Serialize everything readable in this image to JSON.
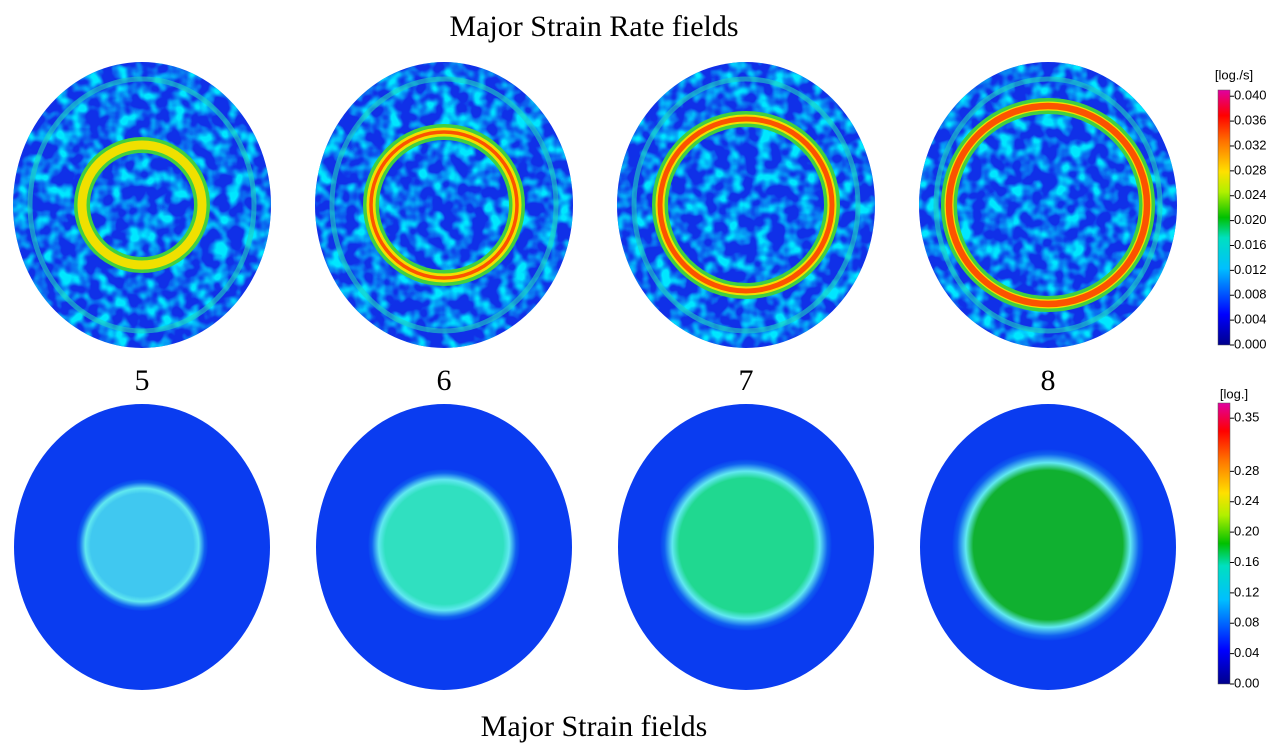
{
  "top_title": "Major Strain Rate fields",
  "bottom_title": "Major Strain fields",
  "panel_labels": [
    "5",
    "6",
    "7",
    "8"
  ],
  "colorbars": [
    {
      "unit": "[log./s]",
      "range": [
        0,
        0.041
      ],
      "ticks": [
        {
          "value": 0,
          "label": "0.000"
        },
        {
          "value": 0.004,
          "label": "0.004"
        },
        {
          "value": 0.008,
          "label": "0.008"
        },
        {
          "value": 0.012,
          "label": "0.012"
        },
        {
          "value": 0.016,
          "label": "0.016"
        },
        {
          "value": 0.02,
          "label": "0.020"
        },
        {
          "value": 0.024,
          "label": "0.024"
        },
        {
          "value": 0.028,
          "label": "0.028"
        },
        {
          "value": 0.032,
          "label": "0.032"
        },
        {
          "value": 0.036,
          "label": "0.036"
        },
        {
          "value": 0.04,
          "label": "0.040"
        }
      ]
    },
    {
      "unit": "[log.]",
      "range": [
        0,
        0.37
      ],
      "ticks": [
        {
          "value": 0,
          "label": "0.00"
        },
        {
          "value": 0.04,
          "label": "0.04"
        },
        {
          "value": 0.08,
          "label": "0.08"
        },
        {
          "value": 0.12,
          "label": "0.12"
        },
        {
          "value": 0.16,
          "label": "0.16"
        },
        {
          "value": 0.2,
          "label": "0.20"
        },
        {
          "value": 0.24,
          "label": "0.24"
        },
        {
          "value": 0.28,
          "label": "0.28"
        },
        {
          "value": 0.35,
          "label": "0.35"
        }
      ]
    }
  ]
}
